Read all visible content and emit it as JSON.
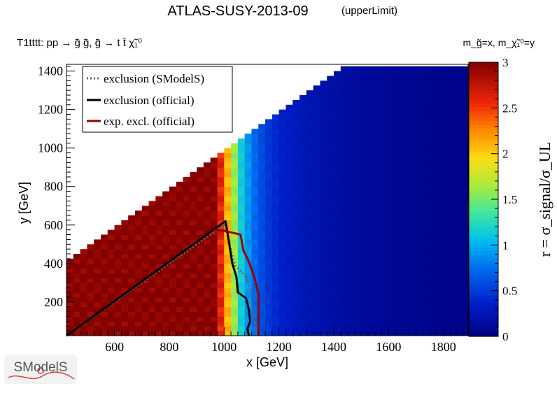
{
  "chart_data": {
    "type": "heatmap",
    "title": "ATLAS-SUSY-2013-09",
    "subtitle": "(upperLimit)",
    "process_label": "T1tttt: pp → g̃ g̃, g̃ → t t̄ χ̃₁⁰",
    "mass_label": "m_g̃=x, m_χ̃₁⁰=y",
    "xlabel": "x [GeV]",
    "ylabel": "y [GeV]",
    "zlabel": "r = σ_signal/σ_UL",
    "xlim": [
      425,
      1890
    ],
    "ylim": [
      25,
      1435
    ],
    "zlim": [
      0,
      3
    ],
    "x_ticks": [
      600,
      800,
      1000,
      1200,
      1400,
      1600,
      1800
    ],
    "y_ticks": [
      200,
      400,
      600,
      800,
      1000,
      1200,
      1400
    ],
    "z_ticks": [
      0,
      0.5,
      1,
      1.5,
      2,
      2.5,
      3
    ],
    "grid": false,
    "legend_position": "top-left",
    "legend": [
      {
        "label": "exclusion (SModelS)",
        "color": "#666666",
        "style": "dotted"
      },
      {
        "label": "exclusion (official)",
        "color": "#000000",
        "style": "solid"
      },
      {
        "label": "exp. excl. (official)",
        "color": "#990000",
        "style": "solid"
      }
    ],
    "grid_cells": {
      "x_start": 425,
      "x_step": 25,
      "y_start": 25,
      "y_step": 25,
      "offset": 0
    },
    "notes": "r values decrease with gluino mass x: r>=3 for x<~960, r~1 near x~1050, r~0.5 near x~1150, r->0 at large x",
    "r_profile": {
      "x": [
        425,
        950,
        975,
        1000,
        1025,
        1050,
        1075,
        1100,
        1125,
        1150,
        1200,
        1300,
        1400,
        1500,
        1600,
        1700,
        1800,
        1890
      ],
      "r": [
        3.0,
        3.0,
        2.6,
        2.1,
        1.6,
        1.15,
        0.9,
        0.72,
        0.58,
        0.48,
        0.36,
        0.24,
        0.17,
        0.12,
        0.09,
        0.07,
        0.05,
        0.04
      ]
    },
    "series": [
      {
        "name": "exclusion (SModelS)",
        "x": [
          425,
          450,
          980,
          1000,
          1010,
          1030,
          1040,
          1060,
          1080,
          1095,
          1100,
          1110,
          1115,
          1120
        ],
        "y": [
          25,
          50,
          580,
          600,
          560,
          440,
          390,
          360,
          330,
          280,
          200,
          120,
          60,
          25
        ]
      },
      {
        "name": "exclusion (official)",
        "x": [
          425,
          1005,
          1010,
          1030,
          1045,
          1050,
          1080,
          1090,
          1095,
          1085,
          1090
        ],
        "y": [
          25,
          620,
          580,
          400,
          330,
          250,
          220,
          160,
          100,
          60,
          25
        ]
      },
      {
        "name": "exp. excl. (official)",
        "x": [
          960,
          1000,
          1060,
          1070,
          1090,
          1110,
          1125,
          1125
        ],
        "y": [
          575,
          570,
          550,
          470,
          410,
          330,
          240,
          25
        ]
      }
    ]
  },
  "logo": {
    "text": "SModelS"
  }
}
